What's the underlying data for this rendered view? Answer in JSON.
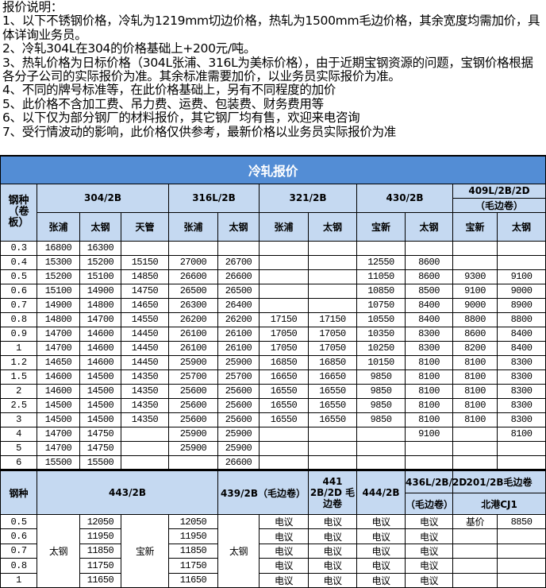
{
  "notes": {
    "heading": "报价说明：",
    "items": [
      "1、以下不锈钢价格，冷轧为1219mm切边价格，热轧为1500mm毛边价格，其余宽度均需加价，具体详询业务员。",
      "2、冷轧304L在304的价格基础上+200元/吨。",
      "3、热轧价格为日标价格（304L张浦、316L为美标价格），由于近期宝钢资源的问题，宝钢价格根据各分子公司的实际报价为准。其余标准需要加价，以业务员实际报价为准。",
      "4、不同的牌号标准等，在此价格基础上，另有不同程度的加价",
      "5、此价格不含加工费、吊力费、运费、包装费、财务费用等",
      "6、以下仅为部分钢厂的材料报价，其它钢厂均有售，欢迎来电咨询",
      "7、受行情波动的影响，此价格仅供参考，最新价格以业务员实际报价为准"
    ]
  },
  "cold": {
    "title": "冷轧报价",
    "grade_label": "钢种（卷板）",
    "groups": [
      "304/2B",
      "316L/2B",
      "321/2B",
      "430/2B",
      "409L/2B/2D",
      "（毛边卷）"
    ],
    "mills": [
      "张浦",
      "太钢",
      "天管",
      "张浦",
      "太钢",
      "张浦",
      "太钢",
      "宝新",
      "太钢",
      "宝新",
      "太钢"
    ],
    "rows": [
      [
        "0.3",
        "16800",
        "16300",
        "",
        "",
        "",
        "",
        "",
        "",
        "",
        "",
        ""
      ],
      [
        "0.4",
        "15300",
        "15200",
        "15150",
        "27000",
        "26700",
        "",
        "",
        "12550",
        "8600",
        "",
        ""
      ],
      [
        "0.5",
        "15200",
        "15100",
        "14850",
        "26600",
        "26600",
        "",
        "",
        "11050",
        "8600",
        "9300",
        "9100"
      ],
      [
        "0.6",
        "15100",
        "14900",
        "14750",
        "26500",
        "26500",
        "",
        "",
        "10850",
        "8500",
        "9100",
        "9000"
      ],
      [
        "0.7",
        "14900",
        "14800",
        "14650",
        "26300",
        "26400",
        "",
        "",
        "10750",
        "8400",
        "9000",
        "8900"
      ],
      [
        "0.8",
        "14800",
        "14700",
        "14550",
        "26200",
        "26200",
        "17150",
        "17150",
        "10550",
        "8400",
        "8800",
        "8800"
      ],
      [
        "0.9",
        "14700",
        "14600",
        "14450",
        "26100",
        "26100",
        "17050",
        "17050",
        "10350",
        "8300",
        "8600",
        "8400"
      ],
      [
        "1",
        "14700",
        "14600",
        "14450",
        "26100",
        "26100",
        "17050",
        "17050",
        "10250",
        "8300",
        "8200",
        "8400"
      ],
      [
        "1.2",
        "14650",
        "14600",
        "14450",
        "25900",
        "25900",
        "16850",
        "16850",
        "10150",
        "8100",
        "8100",
        "8300"
      ],
      [
        "1.5",
        "14600",
        "14500",
        "14350",
        "25700",
        "25700",
        "16650",
        "16650",
        "9850",
        "8100",
        "8100",
        "8300"
      ],
      [
        "2",
        "14600",
        "14500",
        "14350",
        "25600",
        "25600",
        "16550",
        "16550",
        "9850",
        "8100",
        "8100",
        "8300"
      ],
      [
        "2.5",
        "14500",
        "14500",
        "14350",
        "25600",
        "25600",
        "16550",
        "16550",
        "9850",
        "8100",
        "8100",
        "8300"
      ],
      [
        "3",
        "14500",
        "14500",
        "14350",
        "25600",
        "25600",
        "16550",
        "16550",
        "9850",
        "8100",
        "8100",
        "8300"
      ],
      [
        "4",
        "14700",
        "14750",
        "",
        "25900",
        "25900",
        "",
        "",
        "",
        "9100",
        "",
        "8100"
      ],
      [
        "5",
        "14700",
        "14750",
        "",
        "25900",
        "25900",
        "",
        "",
        "",
        "",
        "",
        ""
      ],
      [
        "6",
        "15500",
        "15500",
        "",
        "",
        "26600",
        "",
        "",
        "",
        "",
        "",
        ""
      ]
    ]
  },
  "lower": {
    "grade_label": "钢种",
    "h443": "443/2B",
    "h439": "439/2B（毛边卷）",
    "h441": "441 2B/2D 毛边卷",
    "h444": "444/2B",
    "h436": "436L/2B/2D",
    "h436b": "（毛边卷）",
    "h201": "201/2B毛边卷",
    "h201b": "北港CJ1",
    "mill_taigang": "太钢",
    "mill_baoxin": "宝新",
    "mill_taigang2": "太钢",
    "base_label": "基价",
    "base_price": "8850",
    "rows": [
      {
        "t": "0.5",
        "a": "12050",
        "b": "12050",
        "c": [
          "电议",
          "电议",
          "电议",
          "电议"
        ]
      },
      {
        "t": "0.6",
        "a": "11950",
        "b": "11950",
        "c": [
          "电议",
          "电议",
          "电议",
          "电议"
        ]
      },
      {
        "t": "0.7",
        "a": "11850",
        "b": "11850",
        "c": [
          "电议",
          "电议",
          "电议",
          "电议"
        ]
      },
      {
        "t": "0.8",
        "a": "11750",
        "b": "11750",
        "c": [
          "电议",
          "电议",
          "电议",
          "电议"
        ]
      },
      {
        "t": "1",
        "a": "11650",
        "b": "11650",
        "c": [
          "电议",
          "电议",
          "电议",
          "电议"
        ]
      }
    ]
  },
  "colors": {
    "title_bg": "#538dd5",
    "header_bg": "#c5d9f1"
  }
}
